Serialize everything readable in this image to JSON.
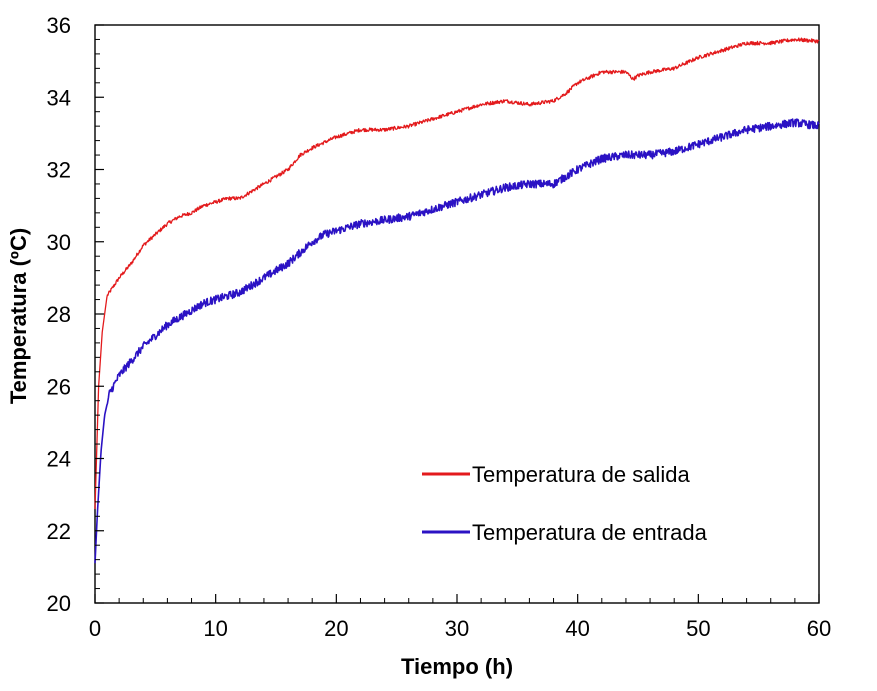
{
  "chart_data": {
    "type": "line",
    "title": "",
    "xlabel": "Tiempo (h)",
    "ylabel": "Temperatura (ºC)",
    "xlim": [
      0,
      60
    ],
    "ylim": [
      20,
      36
    ],
    "x_ticks": [
      0,
      10,
      20,
      30,
      40,
      50,
      60
    ],
    "y_ticks": [
      20,
      22,
      24,
      26,
      28,
      30,
      32,
      34,
      36
    ],
    "x_minor_step": 2,
    "y_minor_step": 0.4,
    "grid": false,
    "legend_position": "bottom-right",
    "series": [
      {
        "name": "Temperatura de salida",
        "color": "#e31a1c",
        "noise": 0.05,
        "points": [
          [
            0,
            22.6
          ],
          [
            0.3,
            26.0
          ],
          [
            0.6,
            27.5
          ],
          [
            1,
            28.5
          ],
          [
            2,
            29.0
          ],
          [
            3,
            29.4
          ],
          [
            4,
            29.9
          ],
          [
            5,
            30.2
          ],
          [
            6,
            30.5
          ],
          [
            7,
            30.7
          ],
          [
            8,
            30.8
          ],
          [
            9,
            31.0
          ],
          [
            10,
            31.1
          ],
          [
            11,
            31.2
          ],
          [
            12,
            31.2
          ],
          [
            13,
            31.4
          ],
          [
            14,
            31.6
          ],
          [
            15,
            31.8
          ],
          [
            16,
            32.0
          ],
          [
            17,
            32.4
          ],
          [
            18,
            32.6
          ],
          [
            20,
            32.9
          ],
          [
            22,
            33.1
          ],
          [
            24,
            33.1
          ],
          [
            26,
            33.2
          ],
          [
            27,
            33.3
          ],
          [
            28,
            33.4
          ],
          [
            29,
            33.5
          ],
          [
            30,
            33.6
          ],
          [
            32,
            33.8
          ],
          [
            34,
            33.9
          ],
          [
            36,
            33.8
          ],
          [
            38,
            33.9
          ],
          [
            39,
            34.1
          ],
          [
            40,
            34.4
          ],
          [
            42,
            34.7
          ],
          [
            44,
            34.7
          ],
          [
            44.6,
            34.5
          ],
          [
            45,
            34.6
          ],
          [
            46,
            34.7
          ],
          [
            48,
            34.8
          ],
          [
            50,
            35.1
          ],
          [
            52,
            35.3
          ],
          [
            54,
            35.5
          ],
          [
            56,
            35.5
          ],
          [
            58,
            35.6
          ],
          [
            60,
            35.55
          ]
        ]
      },
      {
        "name": "Temperatura de entrada",
        "color": "#2b12c4",
        "noise": 0.11,
        "points": [
          [
            0,
            21.1
          ],
          [
            0.2,
            22.5
          ],
          [
            0.5,
            24.2
          ],
          [
            0.8,
            25.2
          ],
          [
            1.2,
            25.8
          ],
          [
            2,
            26.3
          ],
          [
            3,
            26.7
          ],
          [
            4,
            27.1
          ],
          [
            5,
            27.4
          ],
          [
            6,
            27.7
          ],
          [
            7,
            27.9
          ],
          [
            8,
            28.1
          ],
          [
            9,
            28.3
          ],
          [
            10,
            28.4
          ],
          [
            11,
            28.5
          ],
          [
            12,
            28.6
          ],
          [
            13,
            28.8
          ],
          [
            14,
            29.0
          ],
          [
            15,
            29.2
          ],
          [
            16,
            29.4
          ],
          [
            17,
            29.7
          ],
          [
            18,
            30.0
          ],
          [
            19,
            30.2
          ],
          [
            20,
            30.3
          ],
          [
            22,
            30.5
          ],
          [
            24,
            30.6
          ],
          [
            26,
            30.7
          ],
          [
            28,
            30.9
          ],
          [
            30,
            31.1
          ],
          [
            32,
            31.3
          ],
          [
            34,
            31.5
          ],
          [
            36,
            31.6
          ],
          [
            38,
            31.6
          ],
          [
            39,
            31.8
          ],
          [
            40,
            32.0
          ],
          [
            42,
            32.3
          ],
          [
            44,
            32.4
          ],
          [
            46,
            32.4
          ],
          [
            48,
            32.5
          ],
          [
            50,
            32.7
          ],
          [
            52,
            32.9
          ],
          [
            54,
            33.1
          ],
          [
            56,
            33.2
          ],
          [
            58,
            33.3
          ],
          [
            60,
            33.2
          ]
        ]
      }
    ]
  }
}
